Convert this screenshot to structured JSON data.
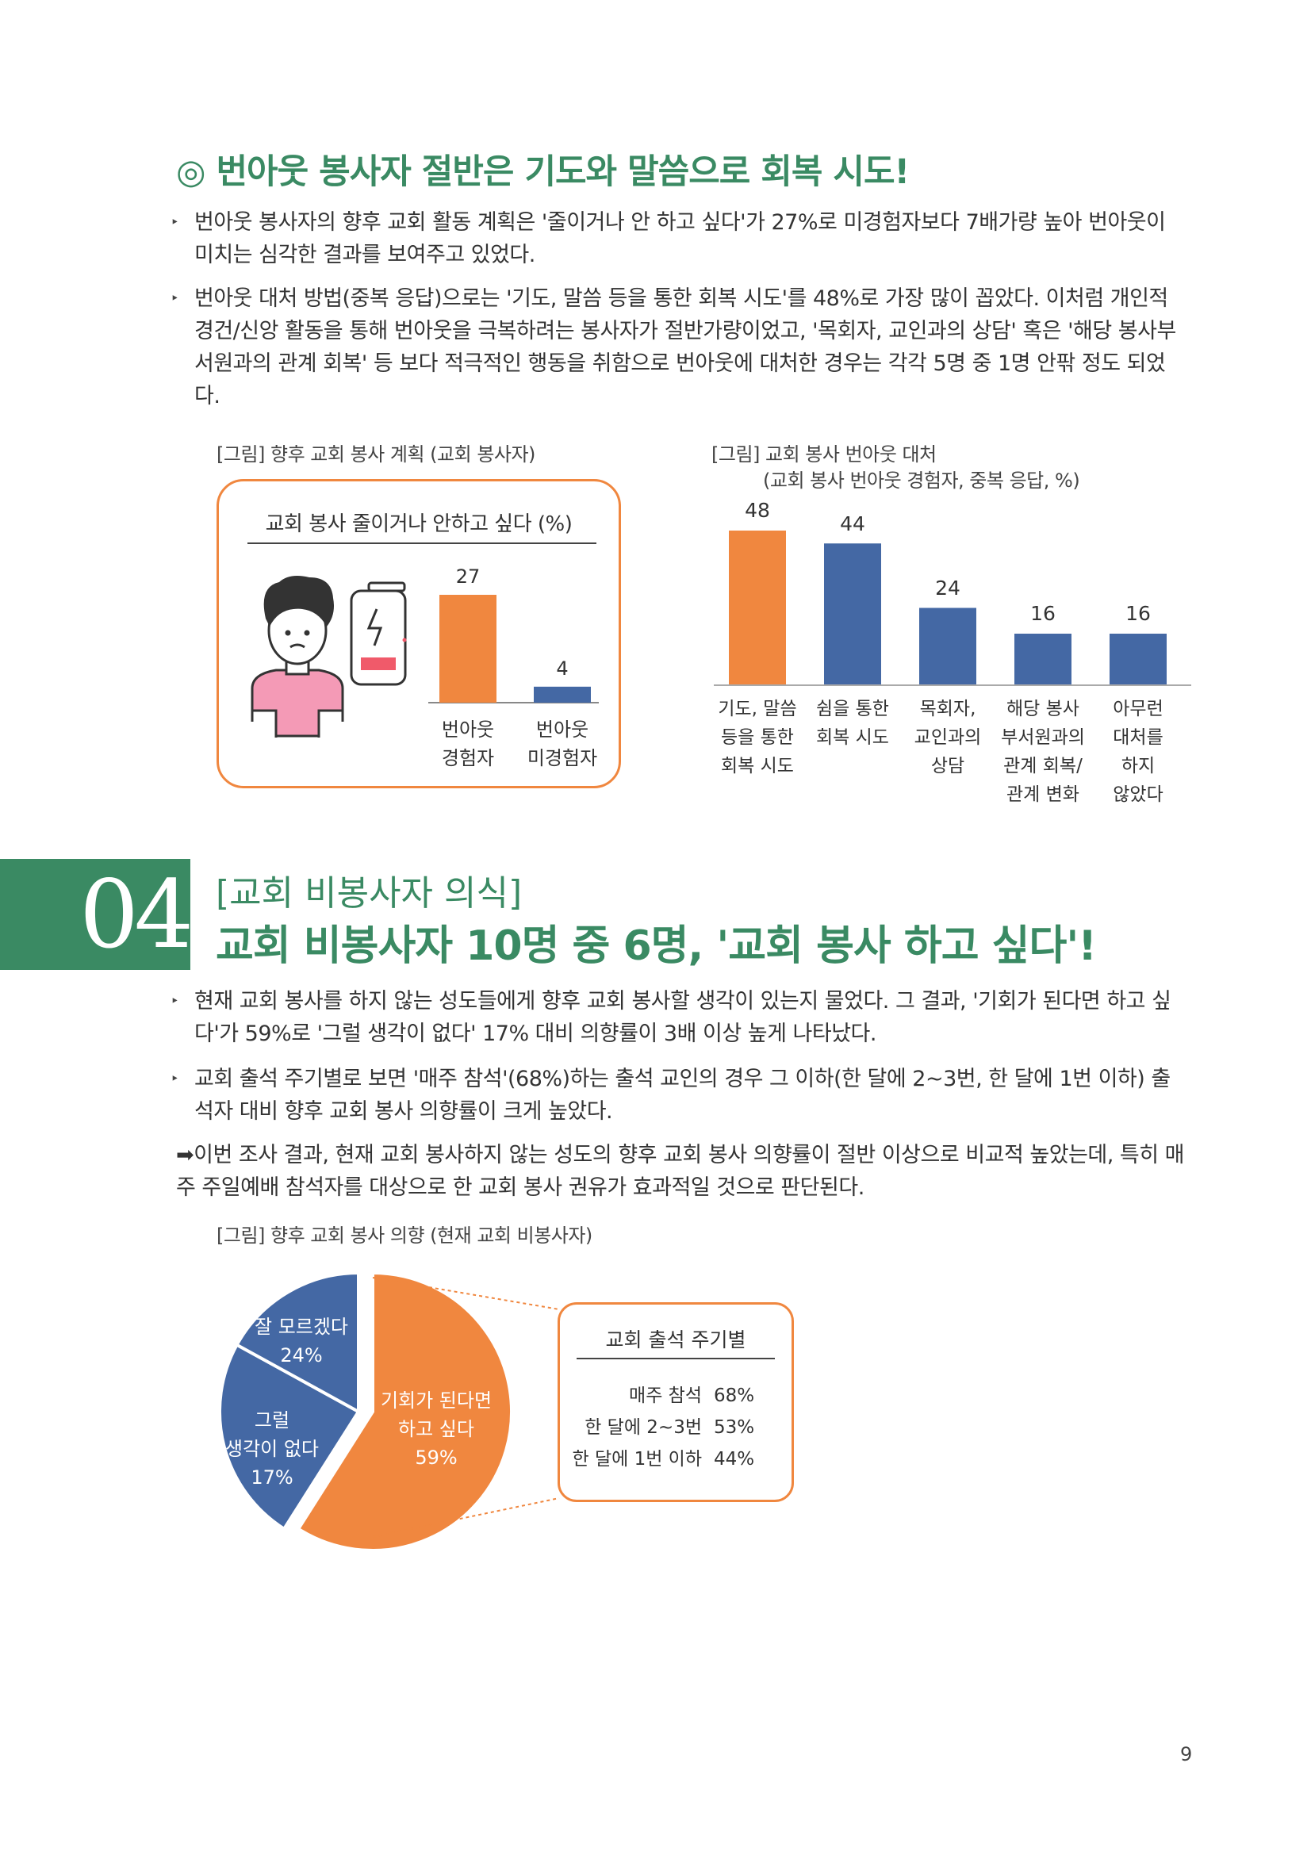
{
  "section1": {
    "heading": "◎ 번아웃 봉사자 절반은 기도와 말씀으로 회복 시도!",
    "bullets": [
      "번아웃 봉사자의 향후 교회 활동 계획은 '줄이거나 안 하고 싶다'가 27%로 미경험자보다 7배가량 높아 번아웃이 미치는 심각한 결과를 보여주고 있었다.",
      "번아웃 대처 방법(중복 응답)으로는 '기도, 말씀 등을 통한 회복 시도'를 48%로 가장 많이 꼽았다. 이처럼 개인적 경건/신앙 활동을 통해 번아웃을 극복하려는 봉사자가 절반가량이었고, '목회자, 교인과의 상담' 혹은 '해당 봉사부서원과의 관계 회복' 등 보다 적극적인 행동을 취함으로 번아웃에 대처한 경우는 각각 5명 중 1명 안팎 정도 되었다."
    ]
  },
  "fig1": {
    "caption": "[그림] 향후 교회 봉사 계획 (교회 봉사자)",
    "box_title": "교회 봉사 줄이거나 안하고 싶다 (%)",
    "value_labels": [
      "27",
      "4"
    ],
    "category_labels": [
      [
        "번아웃",
        "경험자"
      ],
      [
        "번아웃",
        "미경험자"
      ]
    ]
  },
  "fig2": {
    "caption_line1": "[그림] 교회 봉사 번아웃 대처",
    "caption_line2": "(교회 봉사 번아웃 경험자, 중복 응답, %)",
    "value_labels": [
      "48",
      "44",
      "24",
      "16",
      "16"
    ],
    "category_labels": [
      [
        "기도, 말씀",
        "등을 통한",
        "회복 시도"
      ],
      [
        "쉼을 통한",
        "회복 시도"
      ],
      [
        "목회자,",
        "교인과의",
        "상담"
      ],
      [
        "해당 봉사",
        "부서원과의",
        "관계 회복/",
        "관계 변화"
      ],
      [
        "아무런",
        "대처를",
        "하지",
        "않았다"
      ]
    ]
  },
  "section2": {
    "number": "04",
    "subtitle": "[교회 비봉사자 의식]",
    "title": "교회 비봉사자 10명 중 6명, '교회 봉사 하고 싶다'!",
    "bullets": [
      "현재 교회 봉사를 하지 않는 성도들에게 향후 교회 봉사할 생각이 있는지 물었다. 그 결과, '기회가 된다면 하고 싶다'가 59%로 '그럴 생각이 없다' 17% 대비 의향률이 3배 이상 높게 나타났다.",
      "교회 출석 주기별로 보면 '매주 참석'(68%)하는 출석 교인의 경우 그 이하(한 달에 2~3번, 한 달에 1번 이하) 출석자 대비 향후 교회 봉사 의향률이 크게 높았다."
    ],
    "conclusion": "➡이번 조사 결과, 현재 교회 봉사하지 않는 성도의 향후 교회 봉사 의향률이 절반 이상으로 비교적 높았는데, 특히 매주 주일예배 참석자를 대상으로 한 교회 봉사 권유가 효과적일 것으로 판단된다."
  },
  "fig3": {
    "caption": "[그림] 향후 교회 봉사 의향 (현재 교회 비봉사자)",
    "slice_labels": [
      [
        "기회가 된다면",
        "하고 싶다",
        "59%"
      ],
      [
        "잘 모르겠다",
        "24%"
      ],
      [
        "그럴",
        "생각이 없다",
        "17%"
      ]
    ],
    "box_title": "교회 출석 주기별",
    "rows": [
      {
        "label": "매주 참석",
        "value": "68%"
      },
      {
        "label": "한 달에 2~3번",
        "value": "53%"
      },
      {
        "label": "한 달에 1번 이하",
        "value": "44%"
      }
    ]
  },
  "page_number": "9",
  "colors": {
    "green": "#3a8a63",
    "orange": "#f0873f",
    "blue": "#4468a4",
    "pink": "#f49ab6"
  },
  "chart_data": [
    {
      "type": "bar",
      "title": "교회 봉사 줄이거나 안하고 싶다 (%)",
      "categories": [
        "번아웃 경험자",
        "번아웃 미경험자"
      ],
      "values": [
        27,
        4
      ],
      "ylim": [
        0,
        30
      ]
    },
    {
      "type": "bar",
      "title": "[그림] 교회 봉사 번아웃 대처",
      "categories": [
        "기도, 말씀 등을 통한 회복 시도",
        "쉼을 통한 회복 시도",
        "목회자, 교인과의 상담",
        "해당 봉사 부서원과의 관계 회복/관계 변화",
        "아무런 대처를 하지 않았다"
      ],
      "values": [
        48,
        44,
        24,
        16,
        16
      ],
      "ylim": [
        0,
        50
      ]
    },
    {
      "type": "pie",
      "title": "[그림] 향후 교회 봉사 의향 (현재 교회 비봉사자)",
      "categories": [
        "기회가 된다면 하고 싶다",
        "잘 모르겠다",
        "그럴 생각이 없다"
      ],
      "values": [
        59,
        24,
        17
      ]
    }
  ]
}
